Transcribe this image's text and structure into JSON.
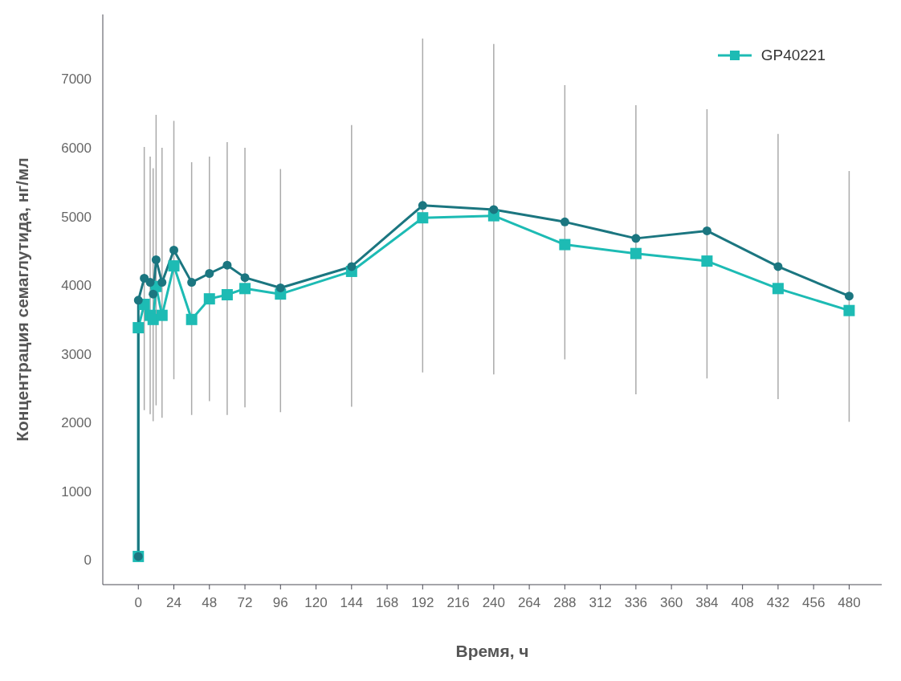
{
  "chart_data": {
    "type": "line",
    "xlabel": "Время, ч",
    "ylabel": "Концентрация семаглутида, нг/мл",
    "xlim": [
      -24,
      502
    ],
    "xticks": [
      0,
      24,
      48,
      72,
      96,
      120,
      144,
      168,
      192,
      216,
      240,
      264,
      288,
      312,
      336,
      360,
      384,
      408,
      432,
      456,
      480
    ],
    "ylim": [
      -360,
      7940
    ],
    "yticks": [
      0,
      1000,
      2000,
      3000,
      4000,
      5000,
      6000,
      7000
    ],
    "legend": "top right",
    "line_style": "solid",
    "series": [
      {
        "name": "GP40221",
        "color": "#1dbbb4",
        "marker": "square",
        "x": [
          0,
          0,
          4,
          8,
          10,
          12,
          16,
          24,
          36,
          48,
          60,
          72,
          96,
          144,
          192,
          240,
          288,
          336,
          384,
          432,
          480
        ],
        "values": [
          50,
          3380,
          3720,
          3560,
          3500,
          3980,
          3560,
          4280,
          3500,
          3800,
          3860,
          3950,
          3870,
          4200,
          4980,
          5010,
          4590,
          4460,
          4350,
          3950,
          3630
        ],
        "errors": [
          null,
          null,
          [
            2180,
            6010
          ],
          [
            2120,
            5870
          ],
          [
            2020,
            5700
          ],
          [
            2250,
            6480
          ],
          [
            2070,
            6000
          ],
          [
            2630,
            6390
          ],
          [
            2110,
            5790
          ],
          [
            2310,
            5870
          ],
          [
            2110,
            6080
          ],
          [
            2220,
            6000
          ],
          [
            2150,
            5690
          ],
          [
            2230,
            6330
          ],
          [
            2730,
            7590
          ],
          [
            2700,
            7510
          ],
          [
            2920,
            6910
          ],
          [
            2410,
            6620
          ],
          [
            2640,
            6560
          ],
          [
            2340,
            6200
          ],
          [
            2010,
            5660
          ]
        ]
      },
      {
        "color": "#1b7680",
        "marker": "circle",
        "x": [
          0,
          0,
          4,
          8,
          10,
          12,
          16,
          24,
          36,
          48,
          60,
          72,
          96,
          144,
          192,
          240,
          288,
          336,
          384,
          432,
          480
        ],
        "values": [
          50,
          3780,
          4100,
          4040,
          3870,
          4370,
          4040,
          4510,
          4040,
          4170,
          4290,
          4110,
          3960,
          4270,
          5160,
          5100,
          4920,
          4680,
          4790,
          4270,
          3840
        ]
      }
    ]
  }
}
